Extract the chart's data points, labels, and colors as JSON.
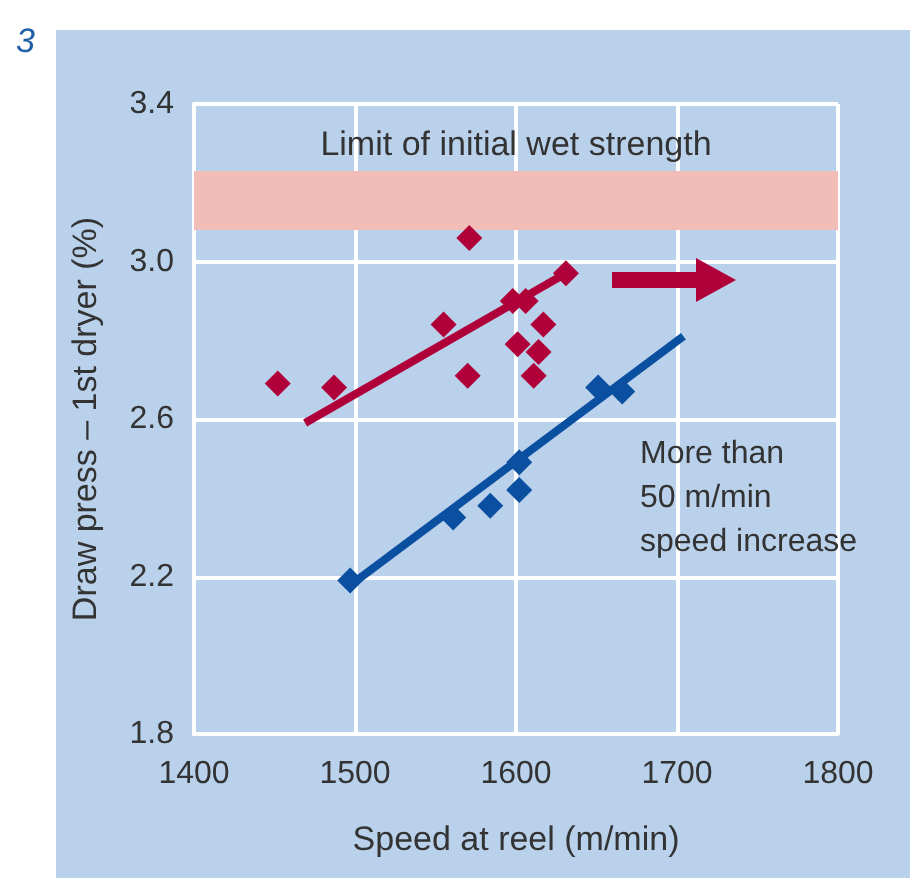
{
  "chart_data": {
    "type": "scatter",
    "xlabel": "Speed at reel (m/min)",
    "ylabel": "Draw press – 1st dryer (%)",
    "annotations": [
      "3",
      "More than\n50 m/min\nspeed increase"
    ],
    "series": [
      {
        "color": "#b0003a",
        "x": [
          1452,
          1487,
          1555,
          1571,
          1570,
          1598,
          1606,
          1601,
          1617,
          1614,
          1611,
          1631
        ],
        "values": [
          2.69,
          2.68,
          2.84,
          3.06,
          2.71,
          2.9,
          2.9,
          2.79,
          2.84,
          2.77,
          2.71,
          2.97
        ]
      },
      {
        "type": "line",
        "marker": "none",
        "color": "#b0003a",
        "x": [
          1469,
          1631
        ],
        "values": [
          2.59,
          2.97
        ]
      },
      {
        "color": "#0a4fa0",
        "x": [
          1497,
          1561,
          1584,
          1602,
          1602,
          1651,
          1666
        ],
        "values": [
          2.19,
          2.35,
          2.38,
          2.42,
          2.49,
          2.68,
          2.67
        ]
      },
      {
        "type": "line",
        "marker": "none",
        "color": "#0a4fa0",
        "x": [
          1501,
          1704
        ],
        "values": [
          2.19,
          2.81
        ]
      }
    ],
    "bands": [
      {
        "axis": "y",
        "from": 3.08,
        "to": 3.23,
        "label": "Limit of initial wet strength",
        "color": "#f2bdb6"
      }
    ],
    "xlim": [
      1400,
      1800
    ],
    "xticks": [
      1400,
      1500,
      1600,
      1700,
      1800
    ],
    "ylim": [
      1.8,
      3.4
    ],
    "yticks": [
      1.8,
      2.2,
      2.6,
      {
        "value": 3,
        "label": "3.0"
      },
      3.4
    ],
    "grid": true,
    "marker": "diamond",
    "line_style": "solid"
  }
}
